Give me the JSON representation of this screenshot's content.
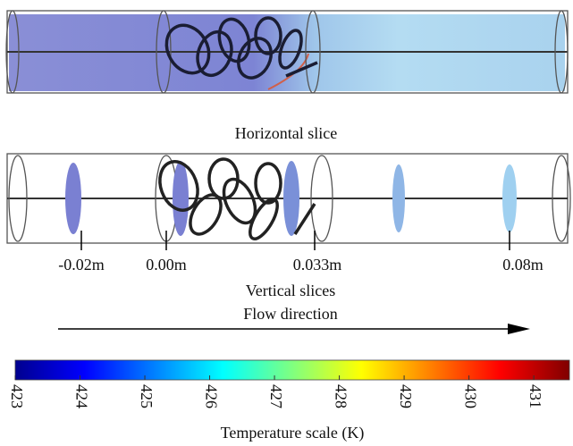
{
  "horizontal_caption": "Horizontal slice",
  "slice_positions": [
    "-0.02m",
    "0.00m",
    "0.033m",
    "0.08m"
  ],
  "vertical_caption": "Vertical slices",
  "flow_label": "Flow direction",
  "colorbar": {
    "ticks": [
      423,
      424,
      425,
      426,
      427,
      428,
      429,
      430,
      431
    ],
    "range": [
      423,
      431.55
    ],
    "label": "Temperature scale (K)"
  }
}
